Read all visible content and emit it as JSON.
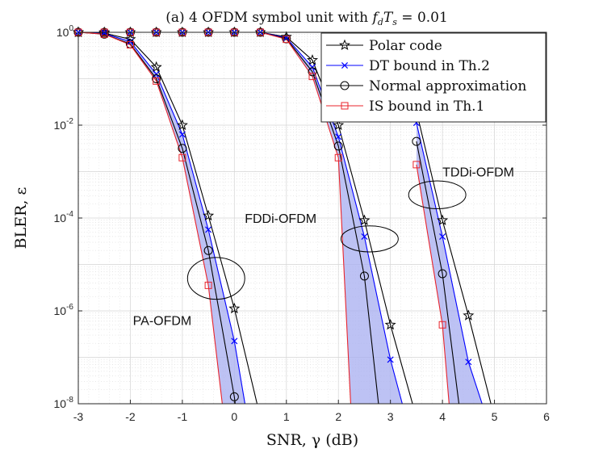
{
  "chart_data": {
    "type": "line",
    "title": "(a) 4 OFDM symbol unit with f_dT_s = 0.01",
    "title_prefix": "(a) 4 OFDM symbol unit with ",
    "title_math": "f",
    "title_math_sub": "d",
    "title_math2": "T",
    "title_math2_sub": "s",
    "title_suffix": " = 0.01",
    "xlabel": "SNR, γ (dB)",
    "ylabel": "BLER, ε",
    "xlim": [
      -3,
      6
    ],
    "ylim_log10": [
      -8,
      0
    ],
    "x_ticks": [
      "-3",
      "-2",
      "-1",
      "0",
      "1",
      "2",
      "3",
      "4",
      "5",
      "6"
    ],
    "x_tick_values": [
      -3,
      -2,
      -1,
      0,
      1,
      2,
      3,
      4,
      5,
      6
    ],
    "y_ticks": [
      {
        "exp": 0,
        "base": "10",
        "sup": "0"
      },
      {
        "exp": -2,
        "base": "10",
        "sup": "-2"
      },
      {
        "exp": -4,
        "base": "10",
        "sup": "-4"
      },
      {
        "exp": -6,
        "base": "10",
        "sup": "-6"
      },
      {
        "exp": -8,
        "base": "10",
        "sup": "-8"
      }
    ],
    "grid": true,
    "legend_position": "top-right",
    "legend": [
      {
        "label": "Polar code",
        "color": "#000000",
        "marker": "star"
      },
      {
        "label": "DT bound in Th.2",
        "color": "#0000ff",
        "marker": "x"
      },
      {
        "label": "Normal approximation",
        "color": "#000000",
        "marker": "circle"
      },
      {
        "label": "IS bound in Th.1",
        "color": "#e8242c",
        "marker": "square"
      }
    ],
    "annotations": [
      {
        "text": "PA-OFDM",
        "x": -1.95,
        "log10y": -6.2
      },
      {
        "text": "FDDi-OFDM",
        "x": 0.2,
        "log10y": -4.0
      },
      {
        "text": "TDDi-OFDM",
        "x": 4.0,
        "log10y": -3.0
      }
    ],
    "ellipses": [
      {
        "cx": -0.35,
        "log10cy": -5.3,
        "rx": 0.55,
        "rlog10y": 0.45
      },
      {
        "cx": 2.6,
        "log10cy": -4.45,
        "rx": 0.55,
        "rlog10y": 0.28
      },
      {
        "cx": 3.9,
        "log10cy": -3.5,
        "rx": 0.55,
        "rlog10y": 0.3
      }
    ],
    "band_color": "#a7aef0",
    "groups": [
      {
        "name": "PA-OFDM",
        "series": [
          {
            "name": "Polar code",
            "color": "#000000",
            "marker": "star",
            "x": [
              -3,
              -2.5,
              -2,
              -1.5,
              -1,
              -0.5,
              0,
              0.5
            ],
            "log10y": [
              0,
              -0.02,
              -0.15,
              -0.75,
              -2.0,
              -3.95,
              -5.95,
              -8.3
            ]
          },
          {
            "name": "DT bound in Th.2",
            "color": "#0000ff",
            "marker": "x",
            "x": [
              -3,
              -2.5,
              -2,
              -1.5,
              -1,
              -0.5,
              0,
              0.25
            ],
            "log10y": [
              0,
              -0.03,
              -0.2,
              -0.9,
              -2.2,
              -4.25,
              -6.65,
              -8.3
            ]
          },
          {
            "name": "Normal approximation",
            "color": "#000000",
            "marker": "circle",
            "x": [
              -3,
              -2.5,
              -2,
              -1.5,
              -1,
              -0.5,
              0,
              0.05
            ],
            "log10y": [
              0,
              -0.04,
              -0.25,
              -1.0,
              -2.5,
              -4.7,
              -7.85,
              -8.3
            ]
          },
          {
            "name": "IS bound in Th.1",
            "color": "#e8242c",
            "marker": "square",
            "x": [
              -3,
              -2.5,
              -2,
              -1.5,
              -1,
              -0.5,
              -0.2
            ],
            "log10y": [
              0,
              -0.04,
              -0.27,
              -1.05,
              -2.7,
              -5.45,
              -8.3
            ]
          }
        ],
        "markers_x_max": 0
      },
      {
        "name": "FDDi-OFDM",
        "series": [
          {
            "name": "Polar code",
            "color": "#000000",
            "marker": "star",
            "x": [
              -3,
              -2.5,
              -2,
              -1.5,
              -1,
              -0.5,
              0,
              0.5,
              1,
              1.5,
              2,
              2.5,
              3,
              3.5
            ],
            "log10y": [
              0,
              0,
              0,
              0,
              0,
              0,
              0,
              0,
              -0.1,
              -0.6,
              -2.0,
              -4.05,
              -6.3,
              -8.3
            ]
          },
          {
            "name": "DT bound in Th.2",
            "color": "#0000ff",
            "marker": "x",
            "x": [
              -3,
              -2.5,
              -2,
              -1.5,
              -1,
              -0.5,
              0,
              0.5,
              1,
              1.5,
              2,
              2.5,
              3,
              3.3
            ],
            "log10y": [
              0,
              0,
              0,
              0,
              0,
              0,
              0,
              0,
              -0.12,
              -0.75,
              -2.25,
              -4.4,
              -7.05,
              -8.3
            ]
          },
          {
            "name": "Normal approximation",
            "color": "#000000",
            "marker": "circle",
            "x": [
              -3,
              -2.5,
              -2,
              -1.5,
              -1,
              -0.5,
              0,
              0.5,
              1,
              1.5,
              2,
              2.5,
              2.8
            ],
            "log10y": [
              0,
              0,
              0,
              0,
              0,
              0,
              0,
              0,
              -0.14,
              -0.85,
              -2.45,
              -5.25,
              -8.3
            ]
          },
          {
            "name": "IS bound in Th.1",
            "color": "#e8242c",
            "marker": "square",
            "x": [
              -3,
              -2.5,
              -2,
              -1.5,
              -1,
              -0.5,
              0,
              0.5,
              1,
              1.5,
              2,
              2.25
            ],
            "log10y": [
              0,
              0,
              0,
              0,
              0,
              0,
              0,
              0,
              -0.15,
              -0.95,
              -2.7,
              -8.3
            ]
          }
        ],
        "markers_x_max": 3
      },
      {
        "name": "TDDi-OFDM",
        "series": [
          {
            "name": "Polar code",
            "color": "#000000",
            "marker": "star",
            "x": [
              3.5,
              4,
              4.5,
              5
            ],
            "log10y": [
              -1.7,
              -4.05,
              -6.1,
              -8.3
            ]
          },
          {
            "name": "DT bound in Th.2",
            "color": "#0000ff",
            "marker": "x",
            "x": [
              3.5,
              4,
              4.5,
              4.85
            ],
            "log10y": [
              -1.95,
              -4.4,
              -7.1,
              -8.3
            ]
          },
          {
            "name": "Normal approximation",
            "color": "#000000",
            "marker": "circle",
            "x": [
              3.5,
              4,
              4.35
            ],
            "log10y": [
              -2.35,
              -5.2,
              -8.3
            ]
          },
          {
            "name": "IS bound in Th.1",
            "color": "#e8242c",
            "marker": "square",
            "x": [
              3.5,
              4,
              4.15
            ],
            "log10y": [
              -2.85,
              -6.3,
              -8.3
            ]
          }
        ],
        "markers_x_max": 4.5
      }
    ]
  }
}
